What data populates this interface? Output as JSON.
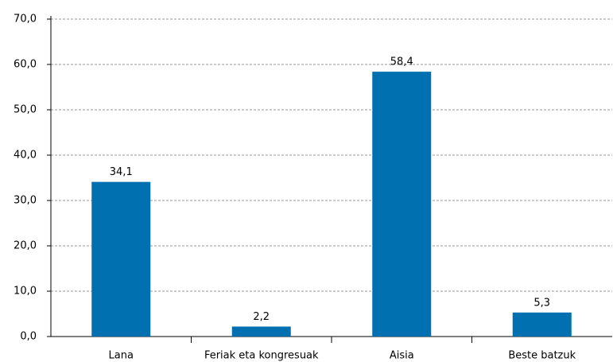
{
  "chart_data": {
    "type": "bar",
    "categories": [
      "Lana",
      "Feriak eta kongresuak",
      "Aisia",
      "Beste batzuk"
    ],
    "values": [
      34.1,
      2.2,
      58.4,
      5.3
    ],
    "value_labels": [
      "34,1",
      "2,2",
      "58,4",
      "5,3"
    ],
    "color": "#0070b0",
    "ylim": [
      0,
      70
    ],
    "yticks": [
      {
        "value": 0,
        "label": "0,0"
      },
      {
        "value": 10,
        "label": "10,0"
      },
      {
        "value": 20,
        "label": "20,0"
      },
      {
        "value": 30,
        "label": "30,0"
      },
      {
        "value": 40,
        "label": "40,0"
      },
      {
        "value": 50,
        "label": "50,0"
      },
      {
        "value": 60,
        "label": "60,0"
      },
      {
        "value": 70,
        "label": "70,0"
      }
    ],
    "grid": true
  }
}
